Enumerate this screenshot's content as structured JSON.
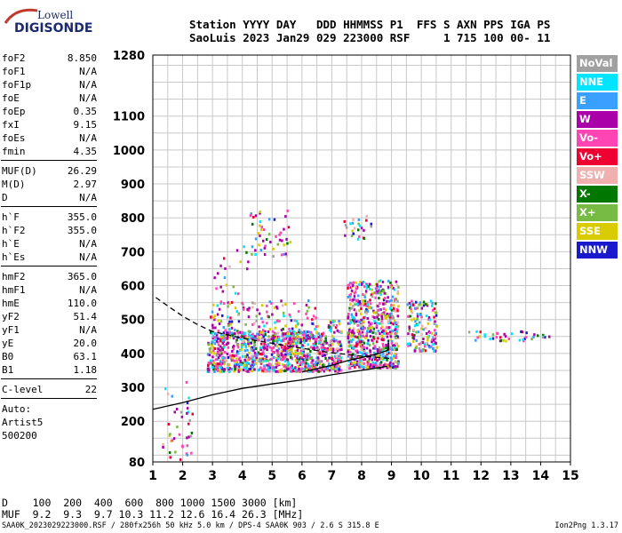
{
  "logo": {
    "line1": "Lowell",
    "line2": "DIGISONDE"
  },
  "header": {
    "line1": "Station YYYY DAY   DDD HHMMSS P1  FFS S AXN PPS IGA PS",
    "line2": "SaoLuis 2023 Jan29 029 223000 RSF     1 715 100 00- 11"
  },
  "params": {
    "group1": [
      {
        "label": "foF2",
        "value": "8.850"
      },
      {
        "label": "foF1",
        "value": "N/A"
      },
      {
        "label": "foF1p",
        "value": "N/A"
      },
      {
        "label": "foE",
        "value": "N/A"
      },
      {
        "label": "foEp",
        "value": "0.35"
      },
      {
        "label": "fxI",
        "value": "9.15"
      },
      {
        "label": "foEs",
        "value": "N/A"
      },
      {
        "label": "fmin",
        "value": "4.35"
      }
    ],
    "group2": [
      {
        "label": "MUF(D)",
        "value": "26.29"
      },
      {
        "label": "M(D)",
        "value": "2.97"
      },
      {
        "label": "D",
        "value": "N/A"
      }
    ],
    "group3": [
      {
        "label": "h`F",
        "value": "355.0"
      },
      {
        "label": "h`F2",
        "value": "355.0"
      },
      {
        "label": "h`E",
        "value": "N/A"
      },
      {
        "label": "h`Es",
        "value": "N/A"
      }
    ],
    "group4": [
      {
        "label": "hmF2",
        "value": "365.0"
      },
      {
        "label": "hmF1",
        "value": "N/A"
      },
      {
        "label": "hmE",
        "value": "110.0"
      },
      {
        "label": "yF2",
        "value": "51.4"
      },
      {
        "label": "yF1",
        "value": "N/A"
      },
      {
        "label": "yE",
        "value": "20.0"
      },
      {
        "label": "B0",
        "value": "63.1"
      },
      {
        "label": "B1",
        "value": "1.18"
      }
    ],
    "clevel": {
      "label": "C-level",
      "value": "22"
    },
    "auto": [
      "Auto:",
      "Artist5",
      "500200"
    ]
  },
  "legend": [
    {
      "label": "NoVal",
      "color": "#a0a0a0"
    },
    {
      "label": "NNE",
      "color": "#00e5ff"
    },
    {
      "label": "E",
      "color": "#39a0ff"
    },
    {
      "label": "W",
      "color": "#aa00aa"
    },
    {
      "label": "Vo-",
      "color": "#ff44b4"
    },
    {
      "label": "Vo+",
      "color": "#ee0033"
    },
    {
      "label": "SSW",
      "color": "#f0b0b0"
    },
    {
      "label": "X-",
      "color": "#007700"
    },
    {
      "label": "X+",
      "color": "#77bb44"
    },
    {
      "label": "SSE",
      "color": "#d8cc00"
    },
    {
      "label": "NNW",
      "color": "#1a1acc"
    }
  ],
  "footer": {
    "line1": "D    100  200  400  600  800 1000 1500 3000 [km]",
    "line2": "MUF  9.2  9.3  9.7 10.3 11.2 12.6 16.4 26.3 [MHz]",
    "info": "SAA0K_2023029223000.RSF / 280fx256h 50 kHz 5.0 km / DPS-4 SAA0K 903 / 2.6 S 315.8 E",
    "version": "Ion2Png 1.3.17"
  },
  "chart_data": {
    "type": "scatter",
    "xlim": [
      1,
      15
    ],
    "ylim": [
      80,
      1280
    ],
    "xticks": [
      "1",
      "2",
      "3",
      "4",
      "5",
      "6",
      "7",
      "8",
      "9",
      "10",
      "11",
      "12",
      "13",
      "14",
      "15"
    ],
    "yticks": [
      {
        "v": 80,
        "label": "80"
      },
      {
        "v": 200,
        "label": "200"
      },
      {
        "v": 300,
        "label": "300"
      },
      {
        "v": 400,
        "label": "400"
      },
      {
        "v": 500,
        "label": "500"
      },
      {
        "v": 600,
        "label": "600"
      },
      {
        "v": 700,
        "label": "700"
      },
      {
        "v": 800,
        "label": "800"
      },
      {
        "v": 900,
        "label": "900"
      },
      {
        "v": 1000,
        "label": "1000"
      },
      {
        "v": 1100,
        "label": "1100"
      },
      {
        "v": 1280,
        "label": "1280"
      }
    ],
    "grid": true,
    "clusters": [
      {
        "fmin": 1.3,
        "fmax": 2.3,
        "hmin": 80,
        "hmax": 320,
        "count": 40
      },
      {
        "fmin": 2.8,
        "fmax": 6.8,
        "hmin": 350,
        "hmax": 470,
        "count": 900
      },
      {
        "fmin": 2.9,
        "fmax": 6.6,
        "hmin": 440,
        "hmax": 560,
        "count": 200
      },
      {
        "fmin": 6.8,
        "fmax": 7.3,
        "hmin": 350,
        "hmax": 500,
        "count": 120
      },
      {
        "fmin": 7.5,
        "fmax": 9.2,
        "hmin": 360,
        "hmax": 620,
        "count": 650
      },
      {
        "fmin": 9.5,
        "fmax": 10.5,
        "hmin": 410,
        "hmax": 560,
        "count": 140
      },
      {
        "fmin": 11.5,
        "fmax": 14.3,
        "hmin": 440,
        "hmax": 470,
        "count": 40
      },
      {
        "fmin": 4.2,
        "fmax": 5.6,
        "hmin": 690,
        "hmax": 830,
        "count": 50
      },
      {
        "fmin": 7.3,
        "fmax": 8.3,
        "hmin": 740,
        "hmax": 810,
        "count": 25
      },
      {
        "fmin": 3.0,
        "fmax": 4.2,
        "hmin": 580,
        "hmax": 790,
        "count": 20
      }
    ],
    "curves": [
      {
        "name": "dashed",
        "style": "dashed",
        "points": [
          [
            1.1,
            565
          ],
          [
            1.5,
            540
          ],
          [
            2,
            510
          ],
          [
            2.5,
            485
          ],
          [
            3,
            465
          ],
          [
            4,
            445
          ],
          [
            5,
            430
          ],
          [
            6,
            415
          ],
          [
            7,
            402
          ],
          [
            8,
            392
          ],
          [
            9,
            385
          ]
        ]
      },
      {
        "name": "solid-upper",
        "style": "solid",
        "points": [
          [
            6,
            345
          ],
          [
            6.5,
            355
          ],
          [
            7,
            365
          ],
          [
            7.5,
            378
          ],
          [
            8,
            388
          ],
          [
            8.5,
            398
          ],
          [
            8.9,
            410
          ],
          [
            8.9,
            440
          ]
        ]
      },
      {
        "name": "solid-lower",
        "style": "solid",
        "points": [
          [
            1,
            235
          ],
          [
            1.5,
            245
          ],
          [
            2,
            255
          ],
          [
            3,
            278
          ],
          [
            4,
            297
          ],
          [
            5,
            310
          ],
          [
            6,
            322
          ],
          [
            7,
            337
          ],
          [
            8,
            350
          ],
          [
            8.5,
            357
          ],
          [
            8.85,
            362
          ]
        ]
      }
    ]
  }
}
